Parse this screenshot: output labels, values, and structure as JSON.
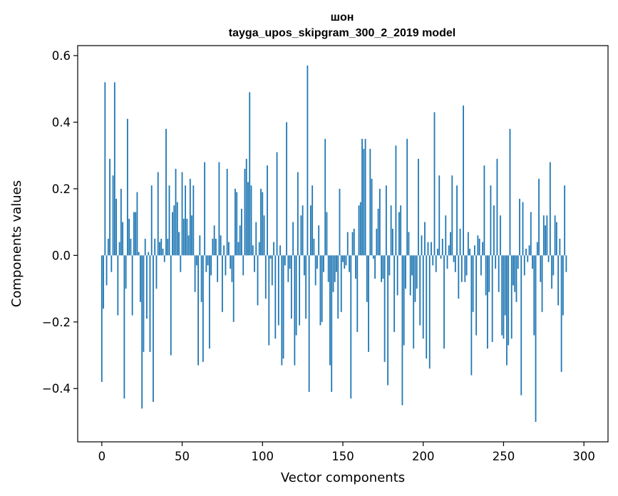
{
  "chart_data": {
    "type": "bar",
    "title": "шон",
    "subtitle": "tayga_upos_skipgram_300_2_2019 model",
    "xlabel": "Vector components",
    "ylabel": "Components values",
    "xlim": [
      -15,
      315
    ],
    "ylim": [
      -0.56,
      0.63
    ],
    "x_ticks": [
      0,
      50,
      100,
      150,
      200,
      250,
      300
    ],
    "y_ticks": [
      -0.4,
      -0.2,
      0.0,
      0.2,
      0.4,
      0.6
    ],
    "y_tick_labels": [
      "−0.4",
      "−0.2",
      "0.0",
      "0.2",
      "0.4",
      "0.6"
    ],
    "grid": false,
    "color": "#1f77b4",
    "values": [
      -0.38,
      -0.16,
      0.52,
      -0.09,
      0.05,
      0.29,
      -0.05,
      0.24,
      0.52,
      0.17,
      -0.18,
      0.04,
      0.2,
      0.1,
      -0.43,
      -0.1,
      0.41,
      0.11,
      0.05,
      -0.18,
      0.13,
      0.13,
      0.19,
      0.01,
      -0.14,
      -0.46,
      -0.29,
      0.05,
      -0.19,
      0.01,
      -0.29,
      0.21,
      -0.44,
      0.05,
      -0.1,
      0.25,
      0.04,
      0.05,
      0.02,
      -0.02,
      0.38,
      0.05,
      0.21,
      -0.3,
      0.13,
      0.15,
      0.26,
      0.16,
      0.07,
      -0.05,
      0.25,
      0.11,
      0.21,
      0.11,
      0.06,
      0.23,
      0.12,
      0.21,
      -0.11,
      -0.03,
      -0.33,
      0.06,
      -0.14,
      -0.32,
      0.28,
      -0.05,
      -0.03,
      -0.28,
      -0.06,
      0.05,
      0.09,
      0.05,
      -0.08,
      0.28,
      0.06,
      -0.17,
      0.03,
      -0.06,
      0.26,
      0.04,
      -0.04,
      -0.08,
      -0.2,
      0.2,
      0.19,
      0.04,
      0.09,
      0.14,
      -0.06,
      0.26,
      0.29,
      0.22,
      0.49,
      0.21,
      0.03,
      -0.05,
      0.1,
      -0.15,
      0.04,
      0.2,
      0.19,
      0.12,
      -0.13,
      0.27,
      -0.27,
      -0.01,
      -0.09,
      0.04,
      -0.25,
      0.31,
      -0.21,
      0.03,
      -0.33,
      -0.31,
      -0.03,
      0.4,
      -0.08,
      -0.04,
      -0.19,
      0.1,
      -0.33,
      -0.24,
      0.25,
      -0.21,
      0.12,
      0.15,
      -0.06,
      -0.19,
      0.57,
      -0.41,
      0.15,
      0.21,
      0.05,
      -0.09,
      -0.04,
      0.09,
      -0.21,
      -0.2,
      -0.05,
      0.35,
      0.13,
      -0.08,
      -0.33,
      -0.41,
      -0.11,
      -0.08,
      -0.05,
      -0.19,
      0.2,
      -0.17,
      -0.02,
      -0.04,
      -0.03,
      0.07,
      -0.05,
      -0.43,
      0.07,
      0.08,
      -0.07,
      -0.23,
      0.15,
      0.16,
      0.35,
      0.32,
      0.35,
      -0.14,
      -0.29,
      0.32,
      0.23,
      -0.01,
      -0.07,
      0.08,
      0.14,
      0.2,
      -0.08,
      -0.07,
      -0.32,
      0.21,
      -0.39,
      -0.06,
      0.15,
      0.08,
      -0.23,
      0.33,
      -0.12,
      0.13,
      0.15,
      -0.45,
      -0.27,
      -0.1,
      0.35,
      0.07,
      -0.12,
      -0.06,
      -0.28,
      -0.14,
      -0.1,
      0.29,
      -0.21,
      0.06,
      -0.25,
      0.1,
      -0.31,
      0.04,
      -0.34,
      0.04,
      -0.03,
      0.43,
      -0.05,
      0.02,
      0.24,
      -0.01,
      0.05,
      -0.28,
      0.12,
      -0.04,
      0.03,
      0.07,
      0.24,
      -0.02,
      -0.05,
      0.21,
      -0.13,
      0.08,
      -0.08,
      0.45,
      -0.08,
      -0.06,
      0.07,
      0.02,
      -0.36,
      -0.17,
      0.03,
      -0.24,
      0.06,
      0.05,
      -0.06,
      0.04,
      0.27,
      -0.12,
      -0.28,
      -0.11,
      0.21,
      -0.26,
      0.15,
      -0.04,
      0.29,
      -0.11,
      0.12,
      -0.24,
      -0.25,
      -0.18,
      -0.33,
      -0.27,
      0.38,
      -0.25,
      -0.09,
      -0.11,
      -0.14,
      -0.04,
      0.17,
      -0.42,
      0.16,
      -0.06,
      0.02,
      -0.02,
      0.03,
      0.13,
      -0.04,
      -0.24,
      -0.5,
      0.04,
      0.23,
      -0.08,
      -0.17,
      0.12,
      0.09,
      0.12,
      -0.02,
      0.28,
      -0.1,
      -0.06,
      0.12,
      0.1,
      -0.15,
      0.05,
      -0.35,
      -0.18,
      0.21,
      -0.05
    ]
  }
}
